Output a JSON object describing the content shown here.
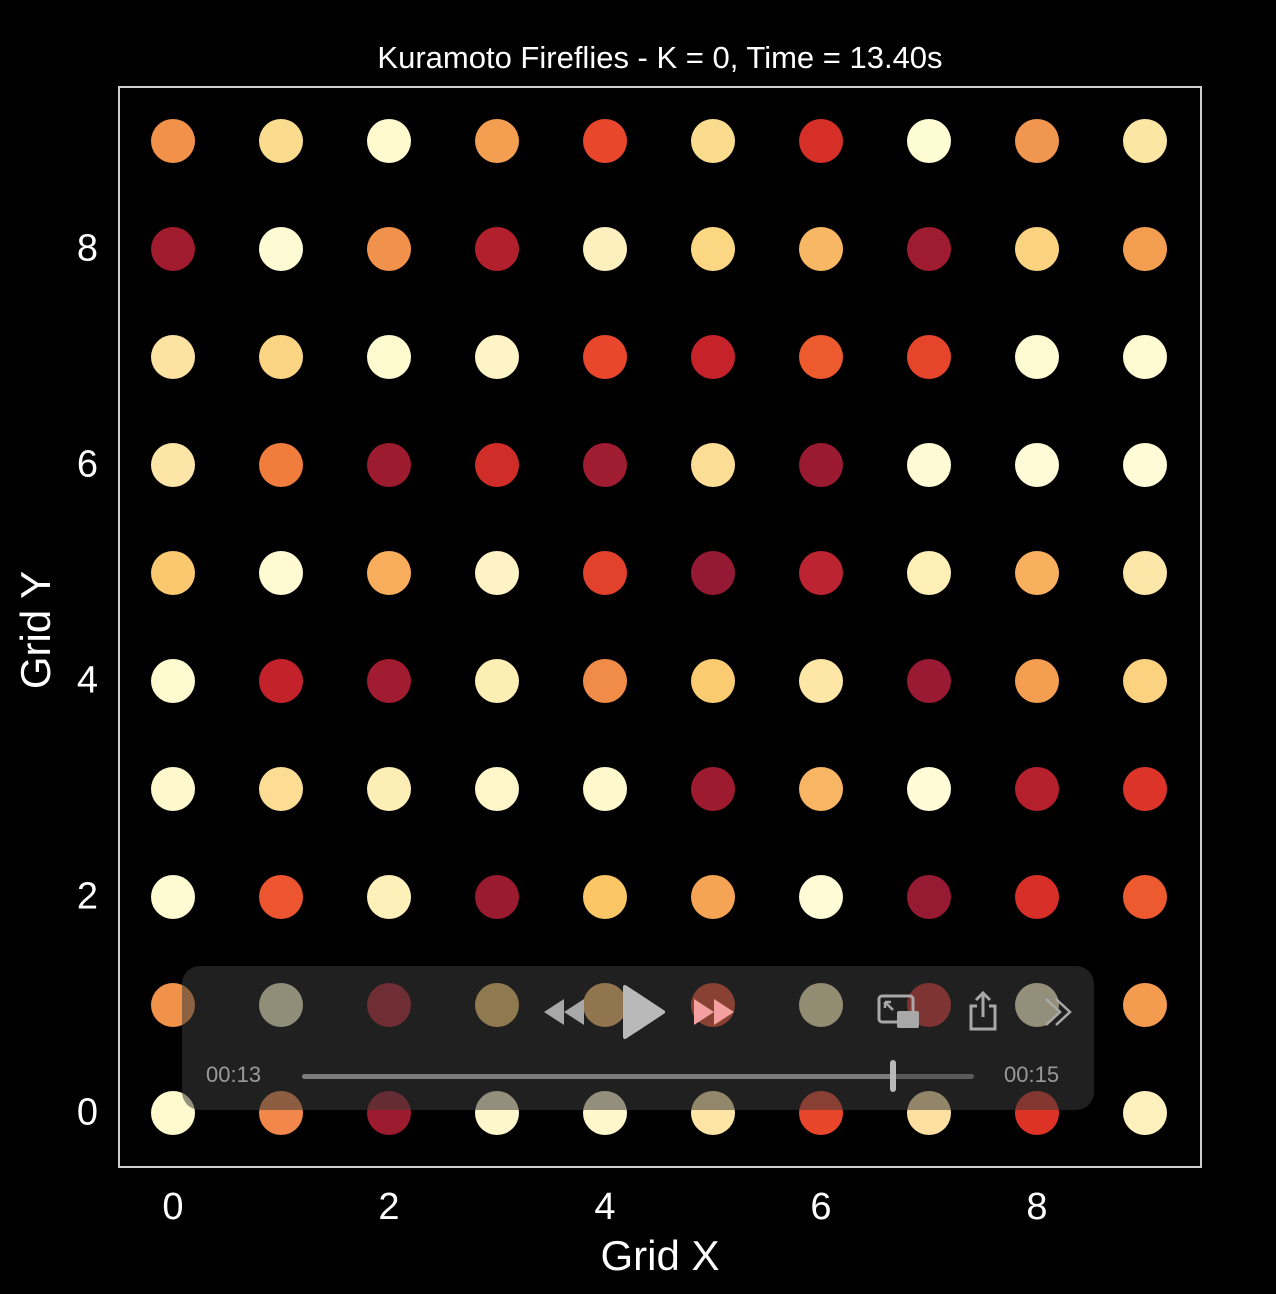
{
  "chart_data": {
    "type": "scatter",
    "title": "Kuramoto Fireflies - K = 0, Time = 13.40s",
    "xlabel": "Grid X",
    "ylabel": "Grid Y",
    "xlim": [
      -0.5,
      9.5
    ],
    "ylim": [
      -0.5,
      9.5
    ],
    "xticks": [
      "0",
      "2",
      "4",
      "6",
      "8"
    ],
    "yticks": [
      "0",
      "2",
      "4",
      "6",
      "8"
    ],
    "grid": false,
    "rows_top_to_bottom": [
      [
        "#f1914a",
        "#fbdc8f",
        "#fefacd",
        "#f39e51",
        "#e8472c",
        "#fbdc8f",
        "#d62f27",
        "#fefcd2",
        "#f0964f",
        "#fbe6a4"
      ],
      [
        "#a01b2e",
        "#fefbd4",
        "#f1924c",
        "#b3202d",
        "#fef0be",
        "#fbd683",
        "#f8b765",
        "#9e1b30",
        "#fbd27f",
        "#f39d50"
      ],
      [
        "#fde3a2",
        "#fcd584",
        "#fefacf",
        "#fef4c6",
        "#e8472b",
        "#c52229",
        "#ec5a2e",
        "#e5452b",
        "#fefbd2",
        "#fefad1"
      ],
      [
        "#fde5a8",
        "#f17d3d",
        "#9c1b2f",
        "#d12d28",
        "#a01c31",
        "#fcdd95",
        "#9a1a31",
        "#fefbd4",
        "#fefbd6",
        "#fefbd6"
      ],
      [
        "#fac86f",
        "#fefbd2",
        "#f8ad5c",
        "#fef3c5",
        "#e2412b",
        "#941a33",
        "#bb2430",
        "#fdefb6",
        "#f8b05f",
        "#fde7a8"
      ],
      [
        "#fefacf",
        "#c3222a",
        "#a11b31",
        "#fdeeb4",
        "#f18c48",
        "#fbcb72",
        "#fde6a6",
        "#991a32",
        "#f39e51",
        "#fbd27f"
      ],
      [
        "#fef9cd",
        "#fcdd93",
        "#fdeeb5",
        "#fef6c9",
        "#fef9cc",
        "#9e1b2f",
        "#f8b563",
        "#fefbd6",
        "#b5202d",
        "#dc3428"
      ],
      [
        "#fefbd3",
        "#ed5430",
        "#fdf0b9",
        "#9a1a30",
        "#fbc766",
        "#f5a455",
        "#fefbd6",
        "#961a32",
        "#d82e28",
        "#ee5a30"
      ],
      [
        "#f1924b",
        "#f9f2c4",
        "#b01f2c",
        "#f7c86c",
        "#f8bd68",
        "#e9492c",
        "#fdefb6",
        "#d12d29",
        "#fef5c7",
        "#f39c50"
      ],
      [
        "#fefacd",
        "#f1874a",
        "#9c1b2e",
        "#fef7cc",
        "#fef7cc",
        "#fde4a4",
        "#e8462b",
        "#fde0a0",
        "#dd3327",
        "#fef1be"
      ]
    ]
  },
  "player": {
    "elapsed": "00:13",
    "total": "00:15",
    "progress": 0.88,
    "icons": [
      "rewind-icon",
      "play-icon",
      "fast-forward-icon",
      "picture-in-picture-icon",
      "share-icon",
      "more-icon"
    ]
  }
}
